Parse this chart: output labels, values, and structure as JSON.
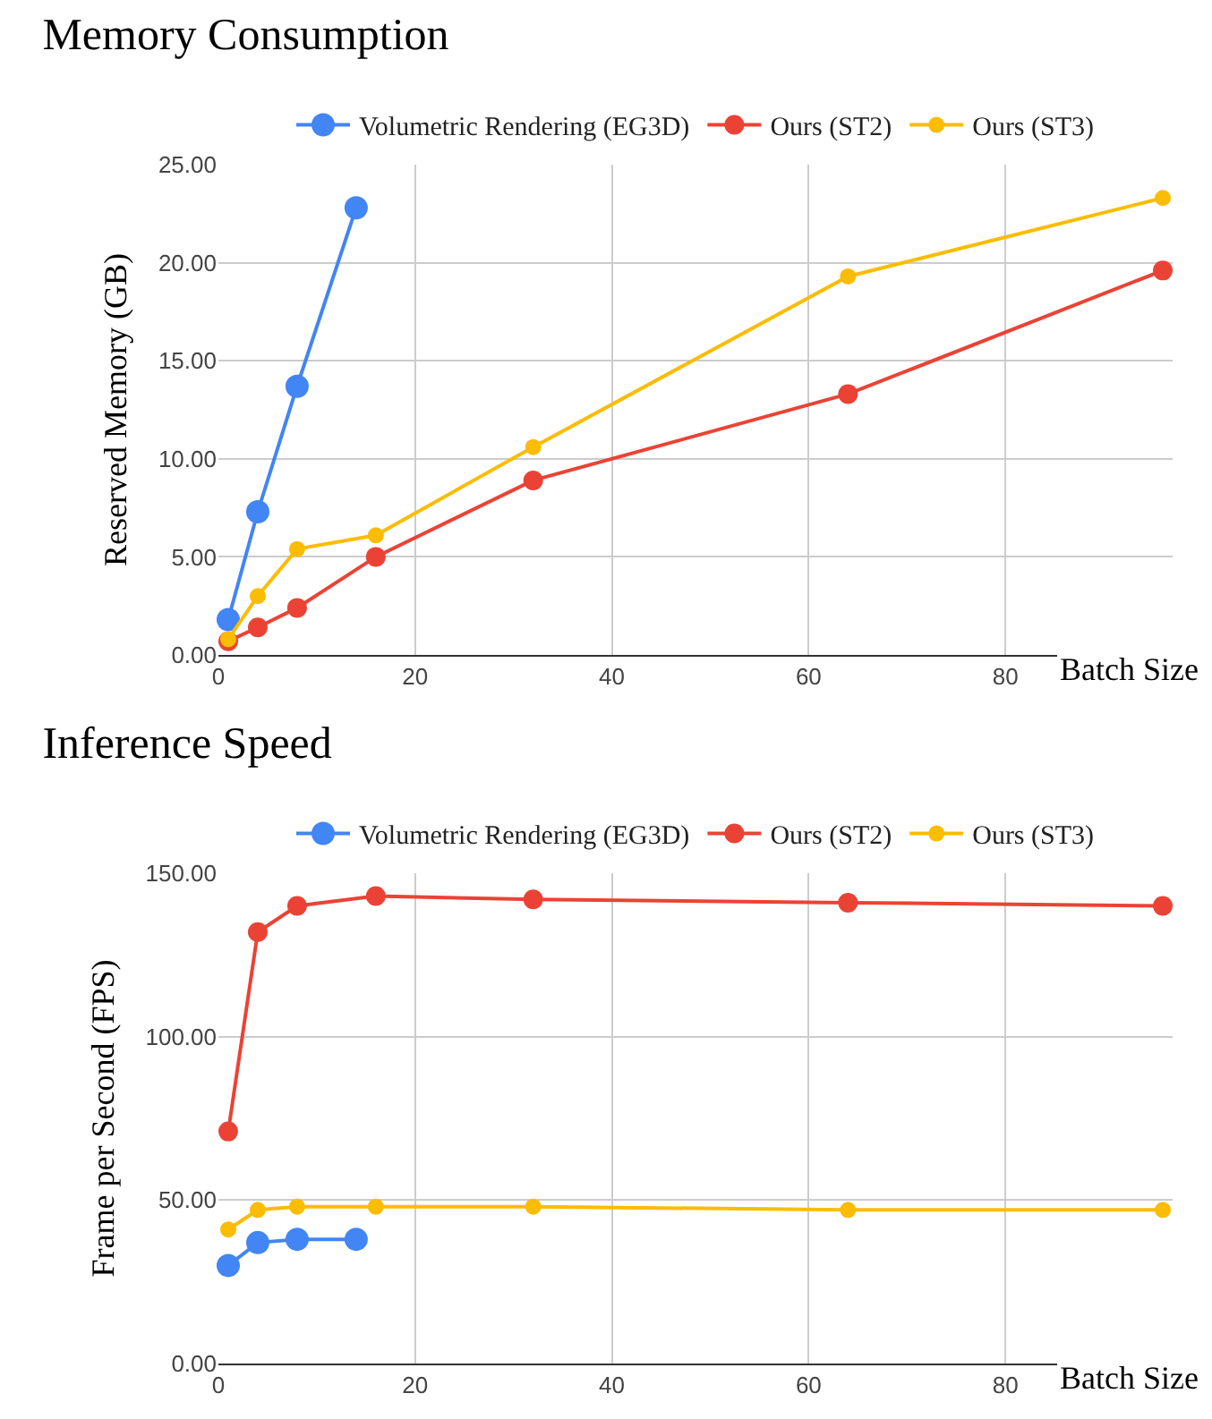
{
  "chart_data": [
    {
      "type": "line",
      "title": "Memory Consumption",
      "xlabel": "Batch Size",
      "ylabel": "Reserved Memory (GB)",
      "xlim": [
        0,
        97
      ],
      "xticks": [
        0,
        20,
        40,
        60,
        80
      ],
      "ylim": [
        0,
        25
      ],
      "yticks": [
        {
          "value": 0,
          "label": "0.00"
        },
        {
          "value": 5,
          "label": "5.00"
        },
        {
          "value": 10,
          "label": "10.00"
        },
        {
          "value": 15,
          "label": "15.00"
        },
        {
          "value": 20,
          "label": "20.00"
        },
        {
          "value": 25,
          "label": "25.00"
        }
      ],
      "grid": true,
      "legend": "top",
      "marker": "circle",
      "line_style": "solid",
      "series": [
        {
          "name": "Volumetric Rendering (EG3D)",
          "color": "#4285f4",
          "x": [
            1,
            4,
            8,
            14
          ],
          "values": [
            1.8,
            7.3,
            13.7,
            22.8
          ]
        },
        {
          "name": "Ours (ST2)",
          "color": "#ea4335",
          "x": [
            1,
            4,
            8,
            16,
            32,
            64,
            96
          ],
          "values": [
            0.7,
            1.4,
            2.4,
            5.0,
            8.9,
            13.3,
            19.6
          ]
        },
        {
          "name": "Ours (ST3)",
          "color": "#fbbc04",
          "x": [
            1,
            4,
            8,
            16,
            32,
            64,
            96
          ],
          "values": [
            0.8,
            3.0,
            5.4,
            6.1,
            10.6,
            19.3,
            23.3
          ]
        }
      ]
    },
    {
      "type": "line",
      "title": "Inference Speed",
      "xlabel": "Batch Size",
      "ylabel": "Frame per Second (FPS)",
      "xlim": [
        0,
        97
      ],
      "xticks": [
        0,
        20,
        40,
        60,
        80
      ],
      "ylim": [
        0,
        150
      ],
      "yticks": [
        {
          "value": 0,
          "label": "0.00"
        },
        {
          "value": 50,
          "label": "50.00"
        },
        {
          "value": 100,
          "label": "100.00"
        },
        {
          "value": 150,
          "label": "150.00"
        }
      ],
      "grid": true,
      "legend": "top",
      "marker": "circle",
      "line_style": "solid",
      "series": [
        {
          "name": "Volumetric Rendering (EG3D)",
          "color": "#4285f4",
          "x": [
            1,
            4,
            8,
            14
          ],
          "values": [
            30,
            37,
            38,
            38
          ]
        },
        {
          "name": "Ours (ST2)",
          "color": "#ea4335",
          "x": [
            1,
            4,
            8,
            16,
            32,
            64,
            96
          ],
          "values": [
            71,
            132,
            140,
            143,
            142,
            141,
            140
          ]
        },
        {
          "name": "Ours (ST3)",
          "color": "#fbbc04",
          "x": [
            1,
            4,
            8,
            16,
            32,
            64,
            96
          ],
          "values": [
            41,
            47,
            48,
            48,
            48,
            47,
            47
          ]
        }
      ]
    }
  ]
}
